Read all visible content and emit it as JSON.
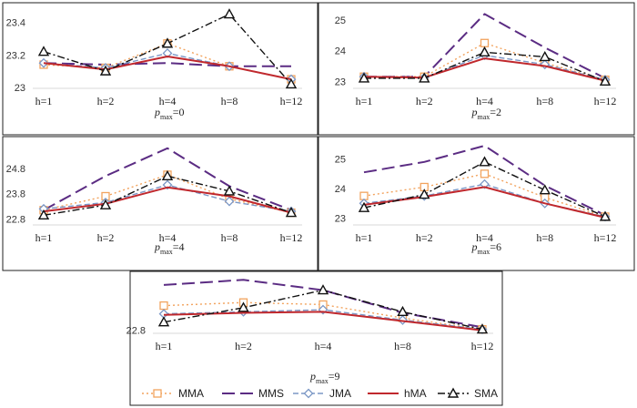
{
  "colors": {
    "MMA": "#f2a35e",
    "MMS": "#5b2c83",
    "JMA": "#7b97c6",
    "hMA": "#c0282d",
    "SMA": "#111111"
  },
  "legend": [
    "MMA",
    "MMS",
    "JMA",
    "hMA",
    "SMA"
  ],
  "chart_data": [
    {
      "type": "line",
      "caption_main": "p",
      "caption_sub": "max",
      "caption_rest": "=0",
      "categories": [
        "h=1",
        "h=2",
        "h=4",
        "h=8",
        "h=12"
      ],
      "ylim": [
        23.0,
        23.47
      ],
      "yticks": [
        "23",
        "23.2",
        "23.4"
      ],
      "ytick_values": [
        23.0,
        23.2,
        23.4
      ],
      "series": [
        {
          "name": "MMA",
          "values": [
            23.14,
            23.12,
            23.27,
            23.13,
            23.05
          ]
        },
        {
          "name": "MMS",
          "values": [
            23.15,
            23.14,
            23.15,
            23.13,
            23.13
          ]
        },
        {
          "name": "JMA",
          "values": [
            23.15,
            23.12,
            23.21,
            23.13,
            23.05
          ]
        },
        {
          "name": "hMA",
          "values": [
            23.15,
            23.11,
            23.19,
            23.13,
            23.05
          ]
        },
        {
          "name": "SMA",
          "values": [
            23.22,
            23.1,
            23.27,
            23.45,
            23.02
          ]
        }
      ]
    },
    {
      "type": "line",
      "caption_main": "p",
      "caption_sub": "max",
      "caption_rest": "=2",
      "categories": [
        "h=1",
        "h=2",
        "h=4",
        "h=8",
        "h=12"
      ],
      "ylim": [
        22.8,
        25.3
      ],
      "yticks": [
        "23",
        "24",
        "25"
      ],
      "ytick_values": [
        23,
        24,
        25
      ],
      "series": [
        {
          "name": "MMA",
          "values": [
            23.15,
            23.15,
            24.25,
            23.6,
            23.05
          ]
        },
        {
          "name": "MMS",
          "values": [
            23.15,
            23.15,
            25.2,
            24.1,
            23.1
          ]
        },
        {
          "name": "JMA",
          "values": [
            23.15,
            23.12,
            23.85,
            23.55,
            23.05
          ]
        },
        {
          "name": "hMA",
          "values": [
            23.15,
            23.12,
            23.75,
            23.5,
            23.02
          ]
        },
        {
          "name": "SMA",
          "values": [
            23.1,
            23.1,
            23.95,
            23.8,
            23.0
          ]
        }
      ]
    },
    {
      "type": "line",
      "caption_main": "p",
      "caption_sub": "max",
      "caption_rest": "=4",
      "categories": [
        "h=1",
        "h=2",
        "h=4",
        "h=8",
        "h=12"
      ],
      "ylim": [
        22.6,
        25.7
      ],
      "yticks": [
        "22.8",
        "23.8",
        "24.8"
      ],
      "ytick_values": [
        22.8,
        23.8,
        24.8
      ],
      "series": [
        {
          "name": "MMA",
          "values": [
            23.15,
            23.7,
            24.55,
            23.6,
            23.05
          ]
        },
        {
          "name": "MMS",
          "values": [
            23.15,
            24.5,
            25.6,
            24.1,
            23.15
          ]
        },
        {
          "name": "JMA",
          "values": [
            23.2,
            23.45,
            24.15,
            23.5,
            23.1
          ]
        },
        {
          "name": "hMA",
          "values": [
            23.1,
            23.4,
            24.05,
            23.7,
            23.05
          ]
        },
        {
          "name": "SMA",
          "values": [
            22.95,
            23.35,
            24.5,
            23.9,
            23.05
          ]
        }
      ]
    },
    {
      "type": "line",
      "caption_main": "p",
      "caption_sub": "max",
      "caption_rest": "=6",
      "categories": [
        "h=1",
        "h=2",
        "h=4",
        "h=8",
        "h=12"
      ],
      "ylim": [
        22.8,
        25.45
      ],
      "yticks": [
        "23",
        "24",
        "25"
      ],
      "ytick_values": [
        23,
        24,
        25
      ],
      "series": [
        {
          "name": "MMA",
          "values": [
            23.75,
            24.05,
            24.5,
            23.7,
            23.05
          ]
        },
        {
          "name": "MMS",
          "values": [
            24.55,
            24.9,
            25.45,
            24.1,
            23.1
          ]
        },
        {
          "name": "JMA",
          "values": [
            23.5,
            23.75,
            24.15,
            23.5,
            23.05
          ]
        },
        {
          "name": "hMA",
          "values": [
            23.45,
            23.72,
            24.05,
            23.5,
            23.02
          ]
        },
        {
          "name": "SMA",
          "values": [
            23.35,
            23.8,
            24.9,
            23.95,
            23.05
          ]
        }
      ]
    },
    {
      "type": "line",
      "caption_main": "p",
      "caption_sub": "max",
      "caption_rest": "=9",
      "categories": [
        "h=1",
        "h=2",
        "h=4",
        "h=8",
        "h=12"
      ],
      "ylim": [
        22.7,
        25.35
      ],
      "yticks": [
        "22.8"
      ],
      "ytick_values": [
        22.8
      ],
      "series": [
        {
          "name": "MMA",
          "values": [
            24.0,
            24.15,
            24.05,
            23.4,
            22.85
          ]
        },
        {
          "name": "MMS",
          "values": [
            25.0,
            25.25,
            24.75,
            23.65,
            22.95
          ]
        },
        {
          "name": "JMA",
          "values": [
            23.6,
            23.7,
            23.8,
            23.3,
            22.85
          ]
        },
        {
          "name": "hMA",
          "values": [
            23.55,
            23.65,
            23.7,
            23.25,
            22.8
          ]
        },
        {
          "name": "SMA",
          "values": [
            23.2,
            23.9,
            24.75,
            23.7,
            22.85
          ]
        }
      ]
    }
  ]
}
